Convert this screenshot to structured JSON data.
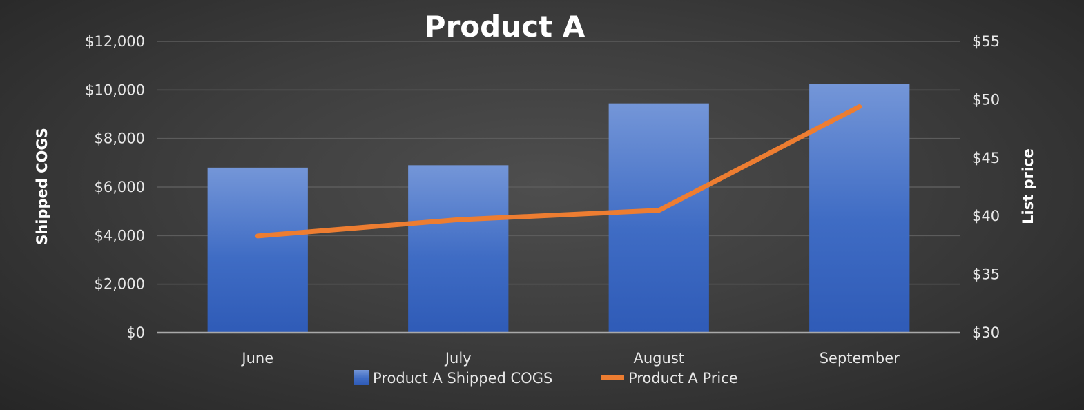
{
  "chart_data": {
    "type": "bar",
    "title": "Product A",
    "categories": [
      "June",
      "July",
      "August",
      "September"
    ],
    "series": [
      {
        "name": "Product A Shipped COGS",
        "type": "bar",
        "axis": "left",
        "values": [
          6800,
          6900,
          9450,
          10250
        ],
        "color": "#4472c4"
      },
      {
        "name": "Product A Price",
        "type": "line",
        "axis": "right",
        "values": [
          38.3,
          39.7,
          40.5,
          49.4
        ],
        "color": "#ed7d31"
      }
    ],
    "ylabel": "Shipped COGS",
    "ylim": [
      0,
      12000
    ],
    "yticks": [
      "$0",
      "$2,000",
      "$4,000",
      "$6,000",
      "$8,000",
      "$10,000",
      "$12,000"
    ],
    "y2label": "List price",
    "y2lim": [
      30,
      55
    ],
    "y2ticks": [
      "$30",
      "$35",
      "$40",
      "$45",
      "$50",
      "$55"
    ],
    "grid": true,
    "legend": "bottom"
  }
}
